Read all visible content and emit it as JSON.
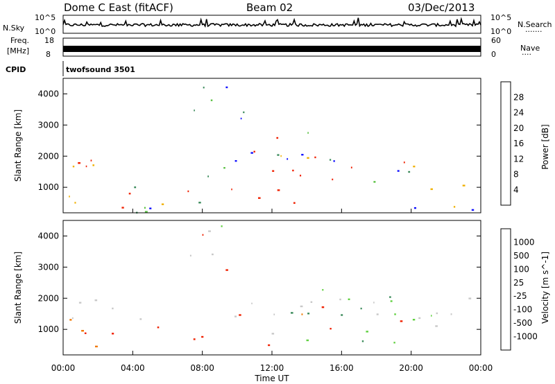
{
  "header": {
    "station": "Dome C East (fitACF)",
    "beam": "Beam 02",
    "date": "03/Dec/2013"
  },
  "top_panels": {
    "nsky": {
      "label": "N.Sky",
      "tick_top": "10^5",
      "tick_bottom": "10^0",
      "right_label": "N.Search",
      "right_tick_top": "10^5",
      "right_tick_bottom": "10^0"
    },
    "freq": {
      "label_line1": "Freq.",
      "label_line2": "[MHz]",
      "tick_top": "18",
      "tick_bottom": "8",
      "right_label": "Nave",
      "right_tick_top": "60",
      "right_tick_bottom": "0"
    },
    "cpid": {
      "label": "CPID",
      "value": "twofsound 3501"
    }
  },
  "time_axis": {
    "label": "Time UT",
    "ticks": [
      "00:00",
      "04:00",
      "08:00",
      "12:00",
      "16:00",
      "20:00",
      "00:00"
    ]
  },
  "chart_data": [
    {
      "type": "heatmap",
      "title": "",
      "xlabel": "Time UT",
      "ylabel": "Slant Range [km]",
      "ylim": [
        180,
        4500
      ],
      "yticks": [
        1000,
        2000,
        3000,
        4000
      ],
      "colorbar": {
        "label": "Power [dB]",
        "ticks": [
          4,
          8,
          12,
          16,
          20,
          24,
          28
        ],
        "colors": [
          "#1010ff",
          "#2850b8",
          "#3a8a5a",
          "#58c040",
          "#f0b000",
          "#f07800",
          "#f02000",
          "#ff0000"
        ]
      },
      "scatter_regions": [
        {
          "t0": 0.0,
          "t1": 6.2,
          "r0": 1300,
          "r1": 2050,
          "level": "medium-high"
        },
        {
          "t0": 6.2,
          "t1": 15.0,
          "r0": 1300,
          "r1": 2200,
          "level": "medium-high"
        },
        {
          "t0": 0.3,
          "t1": 14.0,
          "r0": 350,
          "r1": 1150,
          "level": "high"
        },
        {
          "t0": 15.0,
          "t1": 24.0,
          "r0": 900,
          "r1": 2000,
          "level": "medium-high"
        },
        {
          "t0": 9.8,
          "t1": 15.5,
          "r0": 1800,
          "r1": 2900,
          "level": "medium"
        },
        {
          "t0": 7.0,
          "t1": 10.5,
          "r0": 2800,
          "r1": 4400,
          "level": "low"
        },
        {
          "t0": 0.0,
          "t1": 24.0,
          "r0": 200,
          "r1": 450,
          "level": "low"
        }
      ]
    },
    {
      "type": "heatmap",
      "title": "",
      "xlabel": "Time UT",
      "ylabel": "Slant Range [km]",
      "ylim": [
        180,
        4500
      ],
      "yticks": [
        1000,
        2000,
        3000,
        4000
      ],
      "colorbar": {
        "label": "Velocity [m s^-1]",
        "ticks": [
          1000,
          500,
          100,
          25,
          -25,
          -100,
          -500,
          -1000
        ],
        "colors": [
          "#1a2fb0",
          "#2f6fa0",
          "#3a8a5a",
          "#60d040",
          "#c8c8c8",
          "#f0b000",
          "#f07800",
          "#f02000",
          "#ff0000"
        ]
      },
      "scatter_regions": [
        {
          "t0": 0.0,
          "t1": 24.0,
          "r0": 1300,
          "r1": 2050,
          "level": "near-zero"
        },
        {
          "t0": 0.5,
          "t1": 12.5,
          "r0": 450,
          "r1": 1150,
          "level": "negative"
        },
        {
          "t0": 13.0,
          "t1": 22.0,
          "r0": 500,
          "r1": 2400,
          "level": "positive"
        },
        {
          "t0": 7.0,
          "t1": 10.5,
          "r0": 2800,
          "r1": 4400,
          "level": "mixed"
        }
      ]
    }
  ]
}
